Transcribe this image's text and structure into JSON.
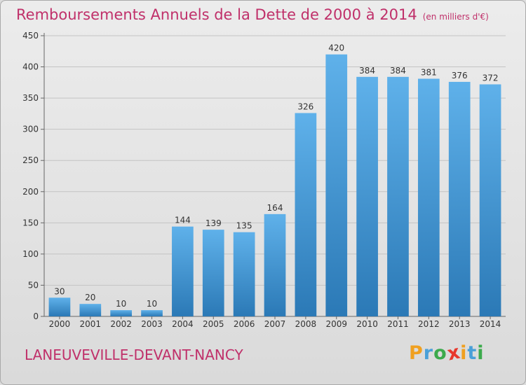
{
  "title": "Remboursements Annuels de la Dette de 2000 à 2014",
  "unit": "(en milliers d'€)",
  "town": "LANEUVEVILLE-DEVANT-NANCY",
  "logo": {
    "text": "Proxiti",
    "letters": [
      {
        "ch": "P",
        "color": "#f0a020"
      },
      {
        "ch": "r",
        "color": "#4aa0d8"
      },
      {
        "ch": "o",
        "color": "#3caa4c"
      },
      {
        "ch": "x",
        "color": "#e8382c"
      },
      {
        "ch": "i",
        "color": "#f0a020"
      },
      {
        "ch": "t",
        "color": "#4aa0d8"
      },
      {
        "ch": "i",
        "color": "#3caa4c"
      }
    ]
  },
  "colors": {
    "title": "#c0306a",
    "bar_top": "#5fb1ea",
    "bar_bottom": "#2b79b6",
    "grid": "#c4c4c4",
    "axis_text": "#333333"
  },
  "chart_data": {
    "type": "bar",
    "title": "Remboursements Annuels de la Dette de 2000 à 2014",
    "ylabel": "",
    "xlabel": "",
    "categories": [
      "2000",
      "2001",
      "2002",
      "2003",
      "2004",
      "2005",
      "2006",
      "2007",
      "2008",
      "2009",
      "2010",
      "2011",
      "2012",
      "2013",
      "2014"
    ],
    "values": [
      30,
      20,
      10,
      10,
      144,
      139,
      135,
      164,
      326,
      420,
      384,
      384,
      381,
      376,
      372
    ],
    "data_labels": [
      "30",
      "20",
      "10",
      "10",
      "144",
      "139",
      "135",
      "164",
      "326",
      "420",
      "384",
      "384",
      "381",
      "376",
      "372"
    ],
    "ylim": [
      0,
      450
    ],
    "yticks": [
      0,
      50,
      100,
      150,
      200,
      250,
      300,
      350,
      400,
      450
    ],
    "grid": true,
    "legend": "none"
  }
}
